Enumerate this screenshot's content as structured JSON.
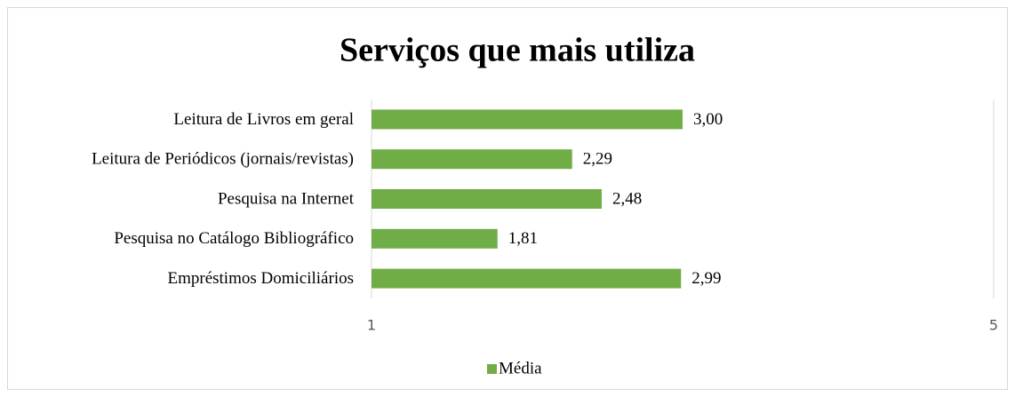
{
  "chart_data": {
    "type": "bar",
    "orientation": "horizontal",
    "title": "Serviços que mais utiliza",
    "categories": [
      "Leitura de Livros em geral",
      "Leitura de Periódicos (jornais/revistas)",
      "Pesquisa na Internet",
      "Pesquisa no Catálogo Bibliográfico",
      "Empréstimos Domiciliários"
    ],
    "series": [
      {
        "name": "Média",
        "color": "#70ad47",
        "values": [
          3.0,
          2.29,
          2.48,
          1.81,
          2.99
        ],
        "value_labels": [
          "3,00",
          "2,29",
          "2,48",
          "1,81",
          "2,99"
        ]
      }
    ],
    "xlim": [
      1,
      5
    ],
    "xticks": [
      1,
      5
    ],
    "grid": true,
    "legend": "bottom"
  }
}
